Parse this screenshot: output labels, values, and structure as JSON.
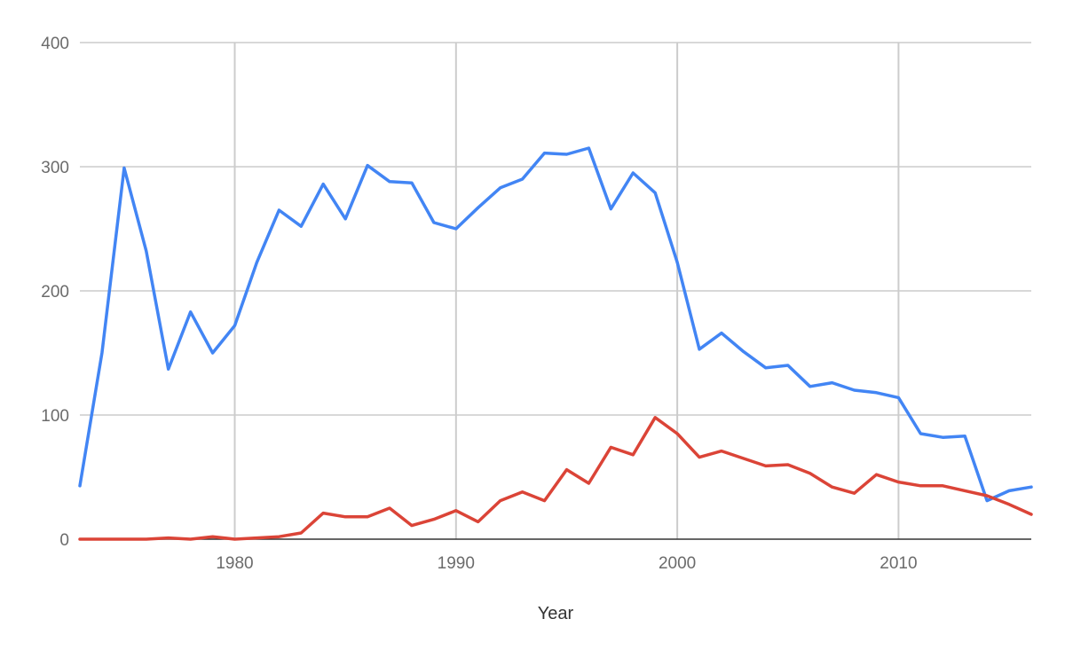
{
  "chart_data": {
    "type": "line",
    "title": "",
    "xlabel": "Year",
    "ylabel": "",
    "xlim": [
      1973,
      2016
    ],
    "ylim": [
      0,
      400
    ],
    "x_ticks": [
      1980,
      1990,
      2000,
      2010
    ],
    "y_ticks": [
      0,
      100,
      200,
      300,
      400
    ],
    "x_tick_labels": [
      "1980",
      "1990",
      "2000",
      "2010"
    ],
    "y_tick_labels": [
      "0",
      "100",
      "200",
      "300",
      "400"
    ],
    "grid": true,
    "legend": "none",
    "x": [
      1973,
      1974,
      1975,
      1976,
      1977,
      1978,
      1979,
      1980,
      1981,
      1982,
      1983,
      1984,
      1985,
      1986,
      1987,
      1988,
      1989,
      1990,
      1991,
      1992,
      1993,
      1994,
      1995,
      1996,
      1997,
      1998,
      1999,
      2000,
      2001,
      2002,
      2003,
      2004,
      2005,
      2006,
      2007,
      2008,
      2009,
      2010,
      2011,
      2012,
      2013,
      2014,
      2015,
      2016
    ],
    "series": [
      {
        "color": "#4285f4",
        "values": [
          43,
          150,
          299,
          232,
          137,
          183,
          150,
          172,
          223,
          265,
          252,
          286,
          258,
          301,
          288,
          287,
          255,
          250,
          267,
          283,
          290,
          311,
          310,
          315,
          266,
          295,
          279,
          223,
          153,
          166,
          151,
          138,
          140,
          123,
          126,
          120,
          118,
          114,
          85,
          82,
          83,
          31,
          39,
          42
        ]
      },
      {
        "color": "#db4437",
        "values": [
          0,
          0,
          0,
          0,
          1,
          0,
          2,
          0,
          1,
          2,
          5,
          21,
          18,
          18,
          25,
          11,
          16,
          23,
          14,
          31,
          38,
          31,
          56,
          45,
          74,
          68,
          98,
          85,
          66,
          71,
          65,
          59,
          60,
          53,
          42,
          37,
          52,
          46,
          43,
          43,
          39,
          35,
          28,
          20
        ]
      }
    ]
  }
}
